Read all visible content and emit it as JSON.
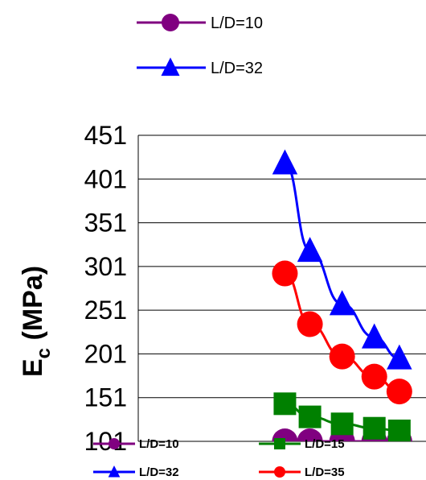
{
  "chart_data": {
    "type": "line",
    "xlabel": "",
    "ylabel_main": "E",
    "ylabel_sub": "c",
    "ylabel_rest": " (MPa)",
    "yticks": [
      451,
      401,
      351,
      301,
      251,
      201,
      151,
      101
    ],
    "ylim": [
      101,
      451
    ],
    "xlim": [
      0,
      8
    ],
    "grid": true,
    "series": [
      {
        "name": "L/D=10",
        "color": "#800080",
        "marker": "circle",
        "x": [
          4.1,
          4.8,
          5.7,
          6.6,
          7.3
        ],
        "y": [
          101,
          101,
          101,
          101,
          101
        ]
      },
      {
        "name": "L/D=15",
        "color": "#008000",
        "marker": "square",
        "x": [
          4.1,
          4.8,
          5.7,
          6.6,
          7.3
        ],
        "y": [
          144,
          129,
          121,
          116,
          113
        ]
      },
      {
        "name": "L/D=32",
        "color": "#0000ff",
        "marker": "triangle",
        "x": [
          4.1,
          4.8,
          5.7,
          6.6,
          7.3
        ],
        "y": [
          419,
          319,
          258,
          220,
          196
        ]
      },
      {
        "name": "L/D=35",
        "color": "#ff0000",
        "marker": "circle",
        "x": [
          4.1,
          4.8,
          5.7,
          6.6,
          7.3
        ],
        "y": [
          293,
          235,
          198,
          175,
          158
        ]
      }
    ]
  },
  "legend_top": {
    "items": [
      {
        "label": "L/D=10",
        "color": "#800080",
        "marker": "circle"
      },
      {
        "label": "L/D=32",
        "color": "#0000ff",
        "marker": "triangle"
      }
    ]
  },
  "legend_bottom": {
    "items": [
      {
        "label": "L/D=10",
        "color": "#800080",
        "marker": "circle"
      },
      {
        "label": "L/D=15",
        "color": "#008000",
        "marker": "square"
      },
      {
        "label": "L/D=32",
        "color": "#0000ff",
        "marker": "triangle"
      },
      {
        "label": "L/D=35",
        "color": "#ff0000",
        "marker": "circle"
      }
    ]
  }
}
